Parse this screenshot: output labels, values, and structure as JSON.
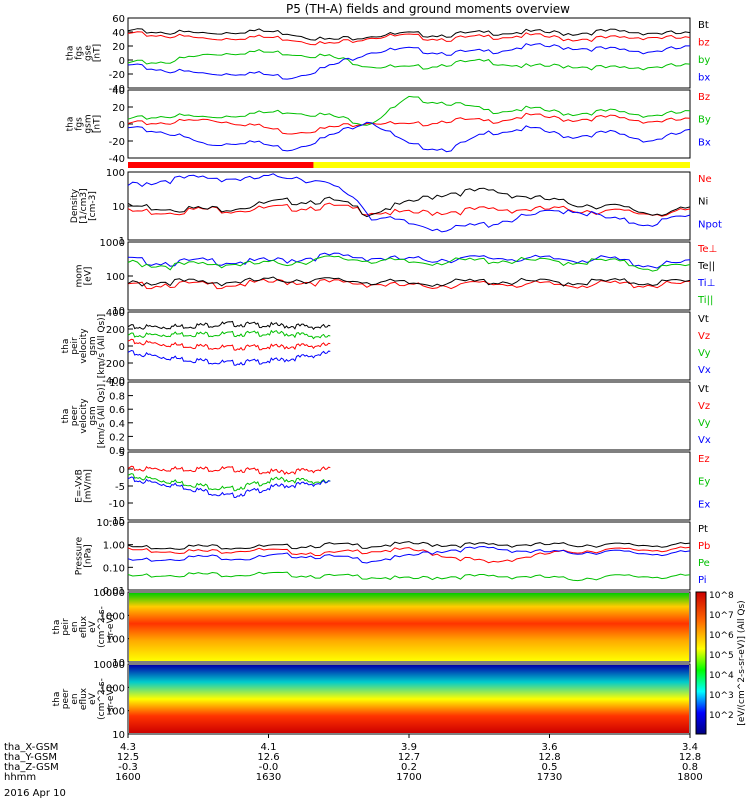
{
  "title": "P5 (TH-A) fields and ground moments overview",
  "date_label": "2016 Apr 10",
  "colorbar_label": "[eV/(cm^2-s-sr-eV)] (All Qs)",
  "colorbar_ticks": [
    "10^8",
    "10^7",
    "10^6",
    "10^5",
    "10^4",
    "10^3",
    "10^2"
  ],
  "mode_bar": {
    "colors": [
      "#ff0000",
      "#ffff00"
    ],
    "split_fraction": 0.33
  },
  "footer": {
    "row_labels": [
      "tha_X-GSM",
      "tha_Y-GSM",
      "tha_Z-GSM",
      "hhmm"
    ],
    "columns": [
      {
        "x": "4.3",
        "y": "12.5",
        "z": "-0.3",
        "t": "1600"
      },
      {
        "x": "4.1",
        "y": "12.6",
        "z": "-0.0",
        "t": "1630"
      },
      {
        "x": "3.9",
        "y": "12.7",
        "z": "0.2",
        "t": "1700"
      },
      {
        "x": "3.6",
        "y": "12.8",
        "z": "0.5",
        "t": "1730"
      },
      {
        "x": "3.4",
        "y": "12.8",
        "z": "0.8",
        "t": "1800"
      }
    ]
  },
  "chart_data": [
    {
      "type": "line",
      "id": "fgs_gse",
      "ylabel_lines": [
        "tha",
        "fgs",
        "gse",
        "[nT]"
      ],
      "yticks": [
        "60",
        "40",
        "20",
        "0",
        "-20",
        "-40"
      ],
      "series": [
        {
          "name": "Bt",
          "color": "#000000",
          "values": [
            41,
            40,
            38,
            42,
            39,
            28,
            35,
            37,
            36,
            39,
            40,
            38,
            41,
            39,
            37
          ]
        },
        {
          "name": "bz",
          "color": "#ff0000",
          "values": [
            37,
            35,
            30,
            33,
            31,
            22,
            33,
            34,
            30,
            33,
            35,
            30,
            31,
            33,
            30
          ]
        },
        {
          "name": "by",
          "color": "#00c000",
          "values": [
            -5,
            -2,
            8,
            12,
            10,
            5,
            -8,
            -12,
            -5,
            -2,
            -10,
            -8,
            -12,
            -10,
            -8
          ]
        },
        {
          "name": "bx",
          "color": "#0000ff",
          "values": [
            -8,
            -15,
            -20,
            -18,
            -25,
            -10,
            12,
            15,
            10,
            12,
            20,
            18,
            15,
            12,
            18
          ]
        }
      ]
    },
    {
      "type": "line",
      "id": "fgs_gsm",
      "ylabel_lines": [
        "tha",
        "fgs",
        "gsm",
        "[nT]"
      ],
      "yticks": [
        "40",
        "20",
        "0",
        "-20",
        "-40"
      ],
      "series": [
        {
          "name": "Bz",
          "color": "#ff0000",
          "values": [
            0,
            2,
            5,
            0,
            -10,
            -5,
            3,
            -2,
            5,
            3,
            10,
            5,
            8,
            3,
            5
          ]
        },
        {
          "name": "By",
          "color": "#00c000",
          "values": [
            5,
            10,
            8,
            12,
            15,
            10,
            0,
            30,
            25,
            15,
            18,
            12,
            15,
            10,
            14
          ]
        },
        {
          "name": "Bx",
          "color": "#0000ff",
          "values": [
            -5,
            -10,
            -25,
            -20,
            -30,
            -15,
            5,
            -25,
            -30,
            -10,
            -5,
            -15,
            -10,
            -20,
            -8
          ]
        }
      ]
    },
    {
      "type": "line",
      "id": "density",
      "log": true,
      "ylabel_lines": [
        "Density",
        "[1/cm3]",
        "[cm-3]"
      ],
      "yticks": [
        "100",
        "10",
        "1"
      ],
      "series": [
        {
          "name": "Ne",
          "color": "#ff0000",
          "values": [
            7,
            7,
            8,
            8,
            9,
            10,
            7,
            6,
            7,
            8,
            8,
            8,
            7,
            6,
            7
          ]
        },
        {
          "name": "Ni",
          "color": "#000000",
          "values": [
            10,
            9,
            8,
            10,
            14,
            15,
            6,
            12,
            25,
            28,
            18,
            12,
            10,
            6,
            8
          ]
        },
        {
          "name": "Npot",
          "color": "#0000ff",
          "values": [
            40,
            60,
            70,
            60,
            80,
            40,
            5,
            3,
            2,
            3,
            5,
            8,
            4,
            3,
            5
          ]
        }
      ]
    },
    {
      "type": "line",
      "id": "temperature",
      "log": true,
      "ylabel_lines": [
        "mom",
        "[eV]"
      ],
      "yticks": [
        "1000",
        "100",
        "10"
      ],
      "series": [
        {
          "name": "Te⊥",
          "color": "#ff0000",
          "values": [
            50,
            60,
            55,
            60,
            70,
            65,
            60,
            50,
            55,
            60,
            58,
            55,
            60,
            55,
            58
          ]
        },
        {
          "name": "Te||",
          "color": "#000000",
          "values": [
            60,
            70,
            65,
            70,
            80,
            75,
            70,
            60,
            65,
            70,
            68,
            65,
            70,
            65,
            68
          ]
        },
        {
          "name": "Ti⊥",
          "color": "#0000ff",
          "values": [
            300,
            250,
            280,
            260,
            300,
            400,
            350,
            300,
            320,
            340,
            330,
            310,
            320,
            200,
            250
          ]
        },
        {
          "name": "Ti||",
          "color": "#00c000",
          "values": [
            250,
            200,
            230,
            220,
            250,
            330,
            300,
            250,
            270,
            290,
            280,
            260,
            280,
            170,
            200
          ]
        }
      ]
    },
    {
      "type": "line",
      "id": "peir_velocity",
      "ylabel_lines": [
        "tha",
        "peir",
        "velocity",
        "gsm",
        "[km/s (All Qs)]"
      ],
      "yticks": [
        "400",
        "200",
        "0",
        "-200",
        "-400"
      ],
      "series": [
        {
          "name": "Vt",
          "color": "#000000",
          "values": [
            220,
            230,
            260,
            240,
            220
          ]
        },
        {
          "name": "Vz",
          "color": "#ff0000",
          "values": [
            50,
            10,
            -20,
            -10,
            10
          ]
        },
        {
          "name": "Vy",
          "color": "#00c000",
          "values": [
            120,
            140,
            140,
            150,
            100
          ]
        },
        {
          "name": "Vx",
          "color": "#0000ff",
          "values": [
            -80,
            -150,
            -200,
            -170,
            -80
          ]
        }
      ]
    },
    {
      "type": "line",
      "id": "peer_velocity",
      "ylabel_lines": [
        "tha",
        "peer",
        "velocity",
        "gsm",
        "[km/s (All Qs)]"
      ],
      "yticks": [
        "1.0",
        "0.8",
        "0.6",
        "0.4",
        "0.2",
        "0.0"
      ],
      "series": [
        {
          "name": "Vt",
          "color": "#000000",
          "values": []
        },
        {
          "name": "Vz",
          "color": "#ff0000",
          "values": []
        },
        {
          "name": "Vy",
          "color": "#00c000",
          "values": []
        },
        {
          "name": "Vx",
          "color": "#0000ff",
          "values": []
        }
      ]
    },
    {
      "type": "line",
      "id": "efield",
      "ylabel_lines": [
        "E=-VxB",
        "[mV/m]"
      ],
      "yticks": [
        "5",
        "0",
        "-5",
        "-10",
        "-15"
      ],
      "series": [
        {
          "name": "Ez",
          "color": "#ff0000",
          "values": [
            0,
            0,
            0,
            -1,
            0
          ]
        },
        {
          "name": "Ey",
          "color": "#00c000",
          "values": [
            -2,
            -4,
            -6,
            -3,
            -4
          ]
        },
        {
          "name": "Ex",
          "color": "#0000ff",
          "values": [
            -3,
            -5,
            -8,
            -5,
            -4
          ]
        }
      ]
    },
    {
      "type": "line",
      "id": "pressure",
      "log": true,
      "ylabel_lines": [
        "Pressure",
        "[nPa]"
      ],
      "yticks": [
        "10.00",
        "1.00",
        "0.10",
        "0.01"
      ],
      "series": [
        {
          "name": "Pt",
          "color": "#000000",
          "values": [
            0.8,
            0.8,
            0.85,
            0.8,
            0.85,
            1.0,
            0.9,
            1.1,
            1.0,
            1.0,
            1.0,
            1.0,
            1.0,
            0.95,
            1.0
          ]
        },
        {
          "name": "Pb",
          "color": "#ff0000",
          "values": [
            0.6,
            0.55,
            0.5,
            0.6,
            0.5,
            0.4,
            0.55,
            0.6,
            0.3,
            0.15,
            0.3,
            0.5,
            0.6,
            0.6,
            0.65
          ]
        },
        {
          "name": "Pe",
          "color": "#00c000",
          "values": [
            0.04,
            0.05,
            0.05,
            0.05,
            0.05,
            0.04,
            0.04,
            0.03,
            0.04,
            0.04,
            0.04,
            0.03,
            0.04,
            0.04,
            0.04
          ]
        },
        {
          "name": "Pi",
          "color": "#0000ff",
          "values": [
            0.2,
            0.25,
            0.3,
            0.25,
            0.35,
            0.3,
            0.2,
            0.3,
            0.6,
            0.7,
            0.5,
            0.45,
            0.5,
            0.4,
            0.45
          ]
        }
      ]
    },
    {
      "type": "heatmap",
      "id": "peir_eflux",
      "ylabel_lines": [
        "tha",
        "peir",
        "en",
        "eflux",
        "eV",
        "(cm^2-s-",
        "sr-eV)"
      ],
      "yticks": [
        "10000",
        "1000",
        "100",
        "10"
      ]
    },
    {
      "type": "heatmap",
      "id": "peer_eflux",
      "ylabel_lines": [
        "tha",
        "peer",
        "en",
        "eflux",
        "eV",
        "(cm^2-s-",
        "sr-eV)"
      ],
      "yticks": [
        "10000",
        "1000",
        "100",
        "10"
      ]
    }
  ]
}
